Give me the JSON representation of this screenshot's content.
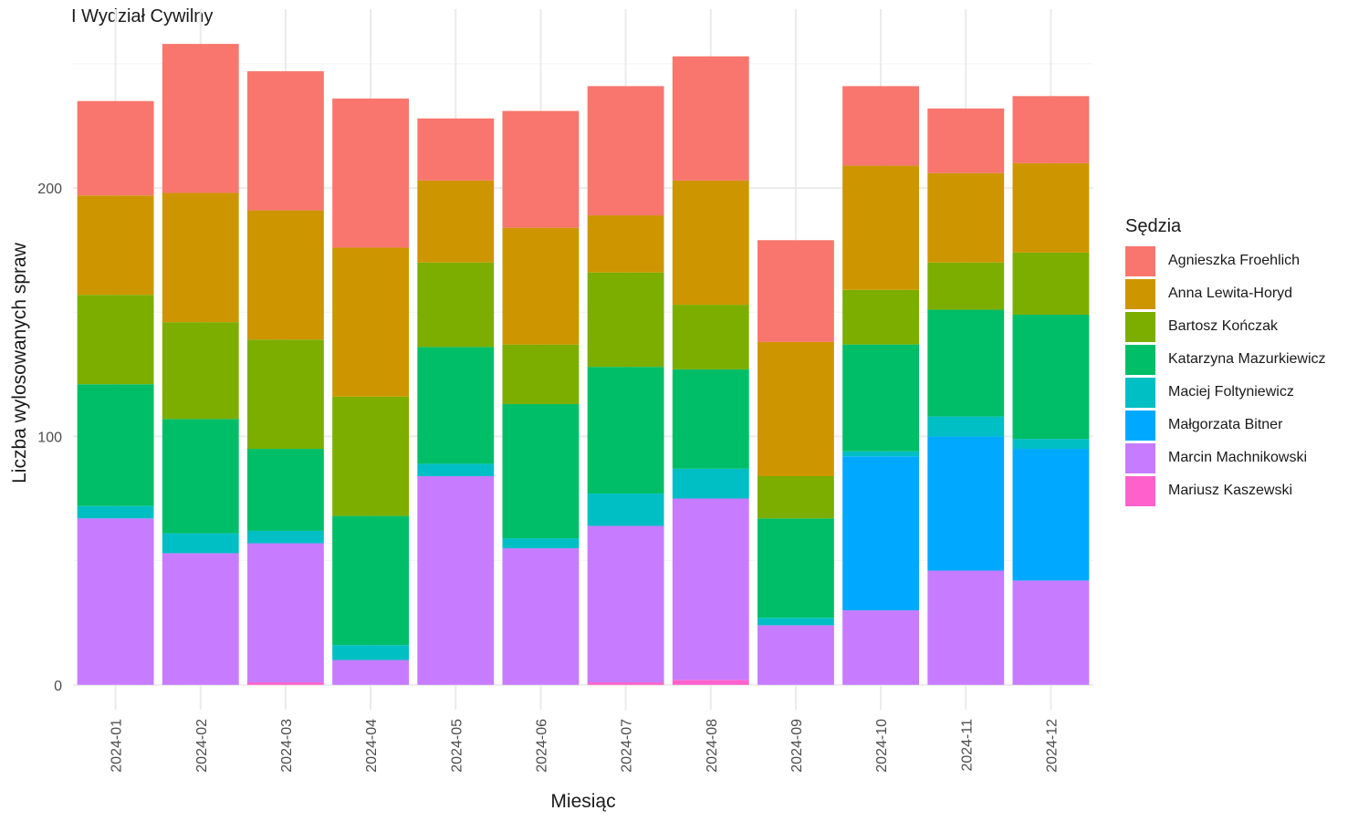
{
  "chart_data": {
    "type": "bar",
    "stacked": true,
    "title": "I Wydział Cywilny",
    "xlabel": "Miesiąc",
    "ylabel": "Liczba wylosowanych spraw",
    "ylim": [
      -10,
      272
    ],
    "yticks": [
      0,
      100,
      200
    ],
    "grid": true,
    "legend_position": "right",
    "legend_title": "Sędzia",
    "categories": [
      "2024-01",
      "2024-02",
      "2024-03",
      "2024-04",
      "2024-05",
      "2024-06",
      "2024-07",
      "2024-08",
      "2024-09",
      "2024-10",
      "2024-11",
      "2024-12"
    ],
    "series": [
      {
        "name": "Mariusz Kaszewski",
        "color": "#FF61CC",
        "values": [
          0,
          0,
          1,
          0,
          0,
          0,
          1,
          2,
          0,
          0,
          0,
          0
        ]
      },
      {
        "name": "Marcin Machnikowski",
        "color": "#C77CFF",
        "values": [
          67,
          53,
          56,
          10,
          84,
          55,
          63,
          73,
          24,
          30,
          46,
          42
        ]
      },
      {
        "name": "Małgorzata Bitner",
        "color": "#00A9FF",
        "values": [
          0,
          0,
          0,
          0,
          0,
          0,
          0,
          0,
          0,
          62,
          54,
          53
        ]
      },
      {
        "name": "Maciej Foltyniewicz",
        "color": "#00BFC4",
        "values": [
          5,
          8,
          5,
          6,
          5,
          4,
          13,
          12,
          3,
          2,
          8,
          4
        ]
      },
      {
        "name": "Katarzyna Mazurkiewicz",
        "color": "#00BE67",
        "values": [
          49,
          46,
          33,
          52,
          47,
          54,
          51,
          40,
          40,
          43,
          43,
          50
        ]
      },
      {
        "name": "Bartosz Kończak",
        "color": "#7CAE00",
        "values": [
          36,
          39,
          44,
          48,
          34,
          24,
          38,
          26,
          17,
          22,
          19,
          25
        ]
      },
      {
        "name": "Anna Lewita-Horyd",
        "color": "#CD9600",
        "values": [
          40,
          52,
          52,
          60,
          33,
          47,
          23,
          50,
          54,
          50,
          36,
          36
        ]
      },
      {
        "name": "Agnieszka Froehlich",
        "color": "#F8766D",
        "values": [
          38,
          60,
          56,
          60,
          25,
          47,
          52,
          50,
          41,
          32,
          26,
          27
        ]
      }
    ]
  },
  "legend": {
    "title": "Sędzia",
    "items": [
      {
        "label": "Agnieszka Froehlich",
        "color": "#F8766D"
      },
      {
        "label": "Anna Lewita-Horyd",
        "color": "#CD9600"
      },
      {
        "label": "Bartosz Kończak",
        "color": "#7CAE00"
      },
      {
        "label": "Katarzyna Mazurkiewicz",
        "color": "#00BE67"
      },
      {
        "label": "Maciej Foltyniewicz",
        "color": "#00BFC4"
      },
      {
        "label": "Małgorzata Bitner",
        "color": "#00A9FF"
      },
      {
        "label": "Marcin Machnikowski",
        "color": "#C77CFF"
      },
      {
        "label": "Mariusz Kaszewski",
        "color": "#FF61CC"
      }
    ]
  }
}
